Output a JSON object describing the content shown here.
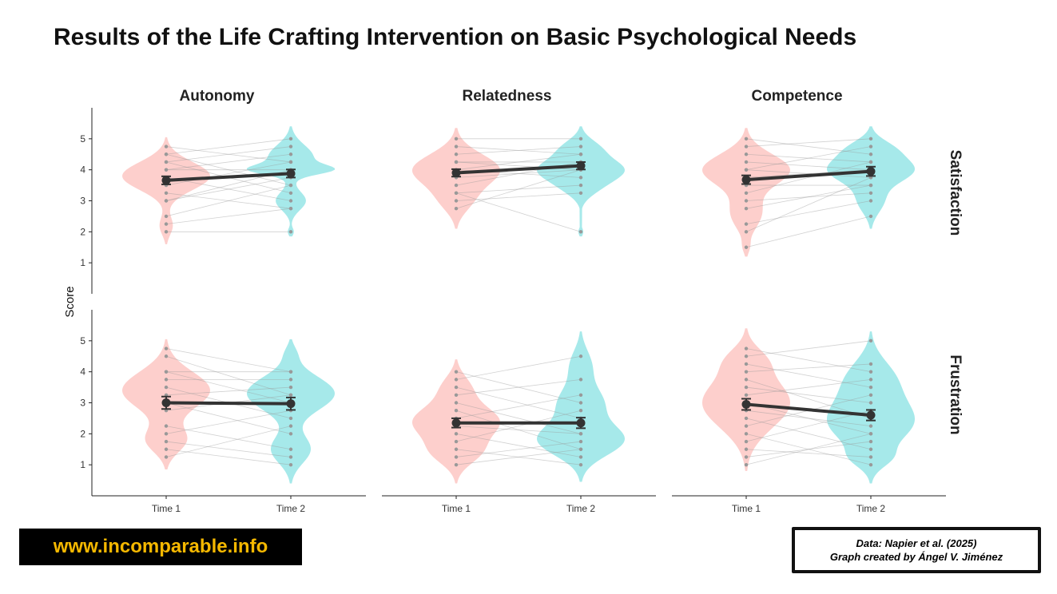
{
  "title": "Results of the Life Crafting Intervention on Basic Psychological Needs",
  "website": "www.incomparable.info",
  "credit": {
    "line1": "Data: Napier et al. (2025)",
    "line2": "Graph created by Ángel V. Jiménez"
  },
  "colors": {
    "time1": "#f8766d",
    "time2": "#00bfc4",
    "mean": "#333333"
  },
  "chart_data": {
    "type": "violin",
    "ylabel": "Score",
    "ylim": [
      0,
      6
    ],
    "yticks": [
      1,
      2,
      3,
      4,
      5
    ],
    "categories": [
      "Time 1",
      "Time 2"
    ],
    "columns": [
      "Autonomy",
      "Relatedness",
      "Competence"
    ],
    "rows": [
      "Satisfaction",
      "Frustration"
    ],
    "panels": [
      {
        "row": "Satisfaction",
        "column": "Autonomy",
        "means": [
          3.66,
          3.88
        ],
        "se": [
          0.13,
          0.13
        ],
        "density": [
          [
            [
              3.8,
              0.45,
              1
            ],
            [
              2.2,
              0.3,
              0.15
            ]
          ],
          [
            [
              4.0,
              0.15,
              0.8
            ],
            [
              4.4,
              0.4,
              0.6
            ],
            [
              3.0,
              0.3,
              0.4
            ],
            [
              2.0,
              0.12,
              0.08
            ]
          ]
        ],
        "pairs": [
          [
            4.75,
            4.25
          ],
          [
            4.5,
            5
          ],
          [
            4.5,
            3.5
          ],
          [
            4.25,
            4.75
          ],
          [
            4.25,
            3.25
          ],
          [
            4,
            4
          ],
          [
            4,
            4.5
          ],
          [
            3.75,
            3
          ],
          [
            3.5,
            4.25
          ],
          [
            3.25,
            2.75
          ],
          [
            3,
            3.75
          ],
          [
            3,
            4
          ],
          [
            2.5,
            3.5
          ],
          [
            2.25,
            2.75
          ],
          [
            2,
            2
          ]
        ]
      },
      {
        "row": "Satisfaction",
        "column": "Relatedness",
        "means": [
          3.9,
          4.13
        ],
        "se": [
          0.12,
          0.12
        ],
        "density": [
          [
            [
              4.0,
              0.5,
              1
            ],
            [
              3.0,
              0.4,
              0.3
            ]
          ],
          [
            [
              4.0,
              0.35,
              1
            ],
            [
              4.7,
              0.3,
              0.4
            ],
            [
              3.4,
              0.3,
              0.3
            ],
            [
              2.0,
              0.12,
              0.06
            ]
          ]
        ],
        "pairs": [
          [
            5,
            5
          ],
          [
            4.75,
            4.5
          ],
          [
            4.5,
            4.75
          ],
          [
            4.25,
            4
          ],
          [
            4.25,
            4.25
          ],
          [
            4,
            4.5
          ],
          [
            4,
            3.75
          ],
          [
            3.75,
            4
          ],
          [
            3.5,
            4.25
          ],
          [
            3.25,
            3.5
          ],
          [
            3,
            3.25
          ],
          [
            2.75,
            4
          ],
          [
            3.25,
            2
          ]
        ]
      },
      {
        "row": "Satisfaction",
        "column": "Competence",
        "means": [
          3.68,
          3.95
        ],
        "se": [
          0.14,
          0.15
        ],
        "density": [
          [
            [
              4.0,
              0.5,
              1
            ],
            [
              2.6,
              0.5,
              0.35
            ],
            [
              1.5,
              0.2,
              0.06
            ]
          ],
          [
            [
              4.0,
              0.4,
              1
            ],
            [
              4.7,
              0.3,
              0.4
            ],
            [
              3.0,
              0.4,
              0.3
            ]
          ]
        ],
        "pairs": [
          [
            5,
            4.5
          ],
          [
            4.75,
            5
          ],
          [
            4.5,
            4.25
          ],
          [
            4.25,
            4
          ],
          [
            4,
            4.75
          ],
          [
            4,
            3.75
          ],
          [
            3.75,
            4
          ],
          [
            3.5,
            3.5
          ],
          [
            3.25,
            4.25
          ],
          [
            3,
            3.25
          ],
          [
            2.75,
            3.5
          ],
          [
            2.25,
            3
          ],
          [
            1.5,
            2.5
          ],
          [
            2,
            3.75
          ]
        ]
      },
      {
        "row": "Frustration",
        "column": "Autonomy",
        "means": [
          3.0,
          2.97
        ],
        "se": [
          0.2,
          0.2
        ],
        "density": [
          [
            [
              3.4,
              0.6,
              1
            ],
            [
              1.8,
              0.4,
              0.45
            ]
          ],
          [
            [
              3.3,
              0.55,
              1
            ],
            [
              1.5,
              0.45,
              0.45
            ],
            [
              4.6,
              0.25,
              0.1
            ]
          ]
        ],
        "pairs": [
          [
            4.75,
            4
          ],
          [
            4.5,
            3.25
          ],
          [
            4,
            4
          ],
          [
            4,
            3
          ],
          [
            3.75,
            3.75
          ],
          [
            3.5,
            2.5
          ],
          [
            3.25,
            3.5
          ],
          [
            3,
            2
          ],
          [
            2.75,
            3.25
          ],
          [
            2.25,
            1.5
          ],
          [
            2,
            2.75
          ],
          [
            1.75,
            1.25
          ],
          [
            1.5,
            1
          ],
          [
            1.25,
            2.25
          ],
          [
            3,
            3
          ]
        ]
      },
      {
        "row": "Frustration",
        "column": "Relatedness",
        "means": [
          2.35,
          2.35
        ],
        "se": [
          0.15,
          0.17
        ],
        "density": [
          [
            [
              2.4,
              0.5,
              1
            ],
            [
              1.4,
              0.4,
              0.5
            ],
            [
              3.5,
              0.4,
              0.3
            ]
          ],
          [
            [
              1.8,
              0.5,
              1
            ],
            [
              3.0,
              0.5,
              0.5
            ],
            [
              4.2,
              0.5,
              0.25
            ]
          ]
        ],
        "pairs": [
          [
            4,
            3
          ],
          [
            3.75,
            4.5
          ],
          [
            3.5,
            2.5
          ],
          [
            3.25,
            3.75
          ],
          [
            3,
            2
          ],
          [
            2.75,
            1.5
          ],
          [
            2.5,
            3.25
          ],
          [
            2.25,
            2
          ],
          [
            2,
            1.25
          ],
          [
            1.75,
            2.75
          ],
          [
            1.5,
            1
          ],
          [
            1.25,
            1.75
          ],
          [
            1,
            1.5
          ]
        ]
      },
      {
        "row": "Frustration",
        "column": "Competence",
        "means": [
          2.95,
          2.6
        ],
        "se": [
          0.18,
          0.17
        ],
        "density": [
          [
            [
              3.0,
              0.8,
              1
            ],
            [
              4.4,
              0.4,
              0.3
            ]
          ],
          [
            [
              2.4,
              0.7,
              1
            ],
            [
              3.8,
              0.6,
              0.5
            ],
            [
              1.2,
              0.3,
              0.3
            ]
          ]
        ],
        "pairs": [
          [
            4.75,
            4
          ],
          [
            4.5,
            5
          ],
          [
            4.25,
            3.5
          ],
          [
            4,
            4.25
          ],
          [
            3.75,
            2.5
          ],
          [
            3.5,
            3
          ],
          [
            3.25,
            3.75
          ],
          [
            3,
            2
          ],
          [
            2.75,
            2.25
          ],
          [
            2.5,
            1.5
          ],
          [
            2.25,
            3.25
          ],
          [
            2,
            1
          ],
          [
            1.75,
            2.75
          ],
          [
            1.5,
            1.25
          ],
          [
            1.25,
            1.75
          ],
          [
            1,
            2
          ]
        ]
      }
    ]
  }
}
